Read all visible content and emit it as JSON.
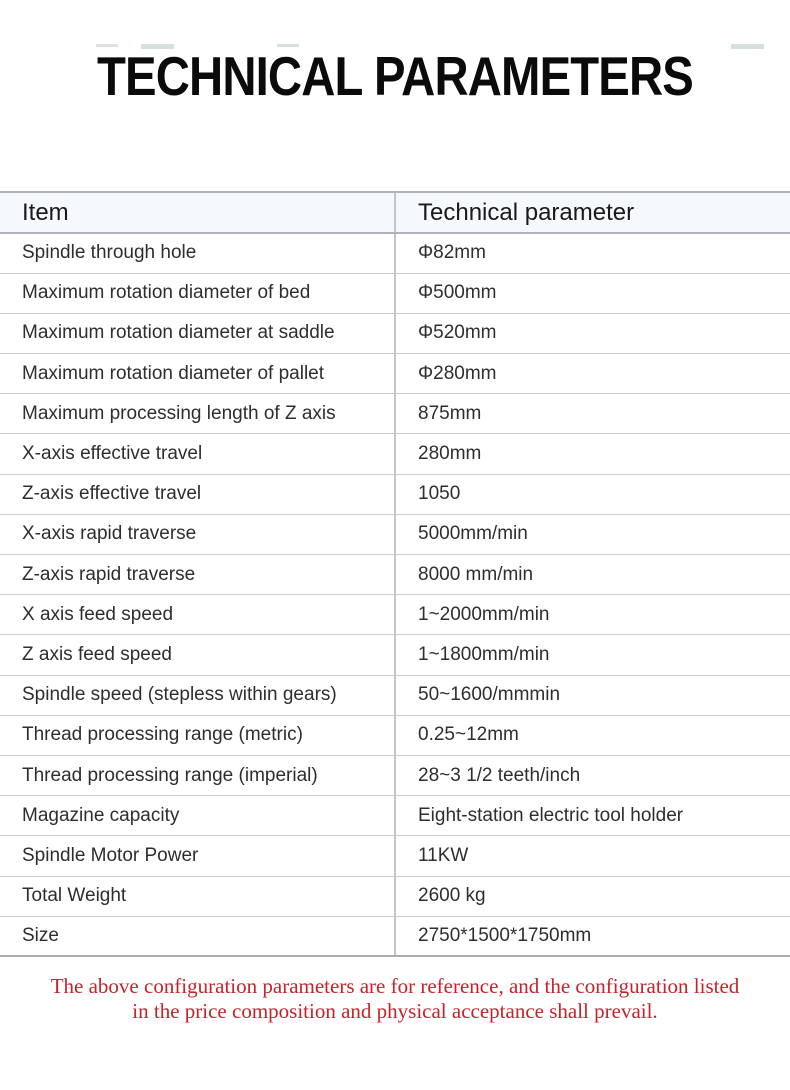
{
  "page": {
    "title": "TECHNICAL PARAMETERS"
  },
  "table": {
    "headers": {
      "item": "Item",
      "parameter": "Technical parameter"
    },
    "rows": [
      {
        "item": "Spindle through hole",
        "value": "Φ82mm"
      },
      {
        "item": "Maximum rotation diameter of bed",
        "value": "Φ500mm"
      },
      {
        "item": "Maximum rotation diameter at saddle",
        "value": "Φ520mm"
      },
      {
        "item": "Maximum rotation diameter of pallet",
        "value": "Φ280mm"
      },
      {
        "item": "Maximum processing length of Z axis",
        "value": "875mm"
      },
      {
        "item": "X-axis effective travel",
        "value": "280mm"
      },
      {
        "item": "Z-axis effective travel",
        "value": "1050"
      },
      {
        "item": "X-axis rapid traverse",
        "value": "5000mm/min"
      },
      {
        "item": "Z-axis rapid traverse",
        "value": "8000 mm/min"
      },
      {
        "item": "X axis feed speed",
        "value": "1~2000mm/min"
      },
      {
        "item": "Z axis feed speed",
        "value": "1~1800mm/min"
      },
      {
        "item": "Spindle speed (stepless within gears)",
        "value": "50~1600/mmmin"
      },
      {
        "item": "Thread processing range (metric)",
        "value": "0.25~12mm"
      },
      {
        "item": "Thread processing range (imperial)",
        "value": "28~3 1/2 teeth/inch"
      },
      {
        "item": "Magazine capacity",
        "value": "Eight-station electric tool holder"
      },
      {
        "item": "Spindle Motor Power",
        "value": "11KW"
      },
      {
        "item": "Total Weight",
        "value": "2600 kg"
      },
      {
        "item": "Size",
        "value": "2750*1500*1750mm"
      }
    ]
  },
  "disclaimer": {
    "line1": "The above configuration parameters are for reference, and the configuration listed",
    "line2": "in the price composition and physical acceptance shall prevail."
  },
  "colors": {
    "header_background": "#f5f8fc",
    "header_border": "#b0b4b8",
    "row_border": "#c9cbcd",
    "disclaimer_red": "#c5232b",
    "title_black": "#0b0b0b"
  }
}
